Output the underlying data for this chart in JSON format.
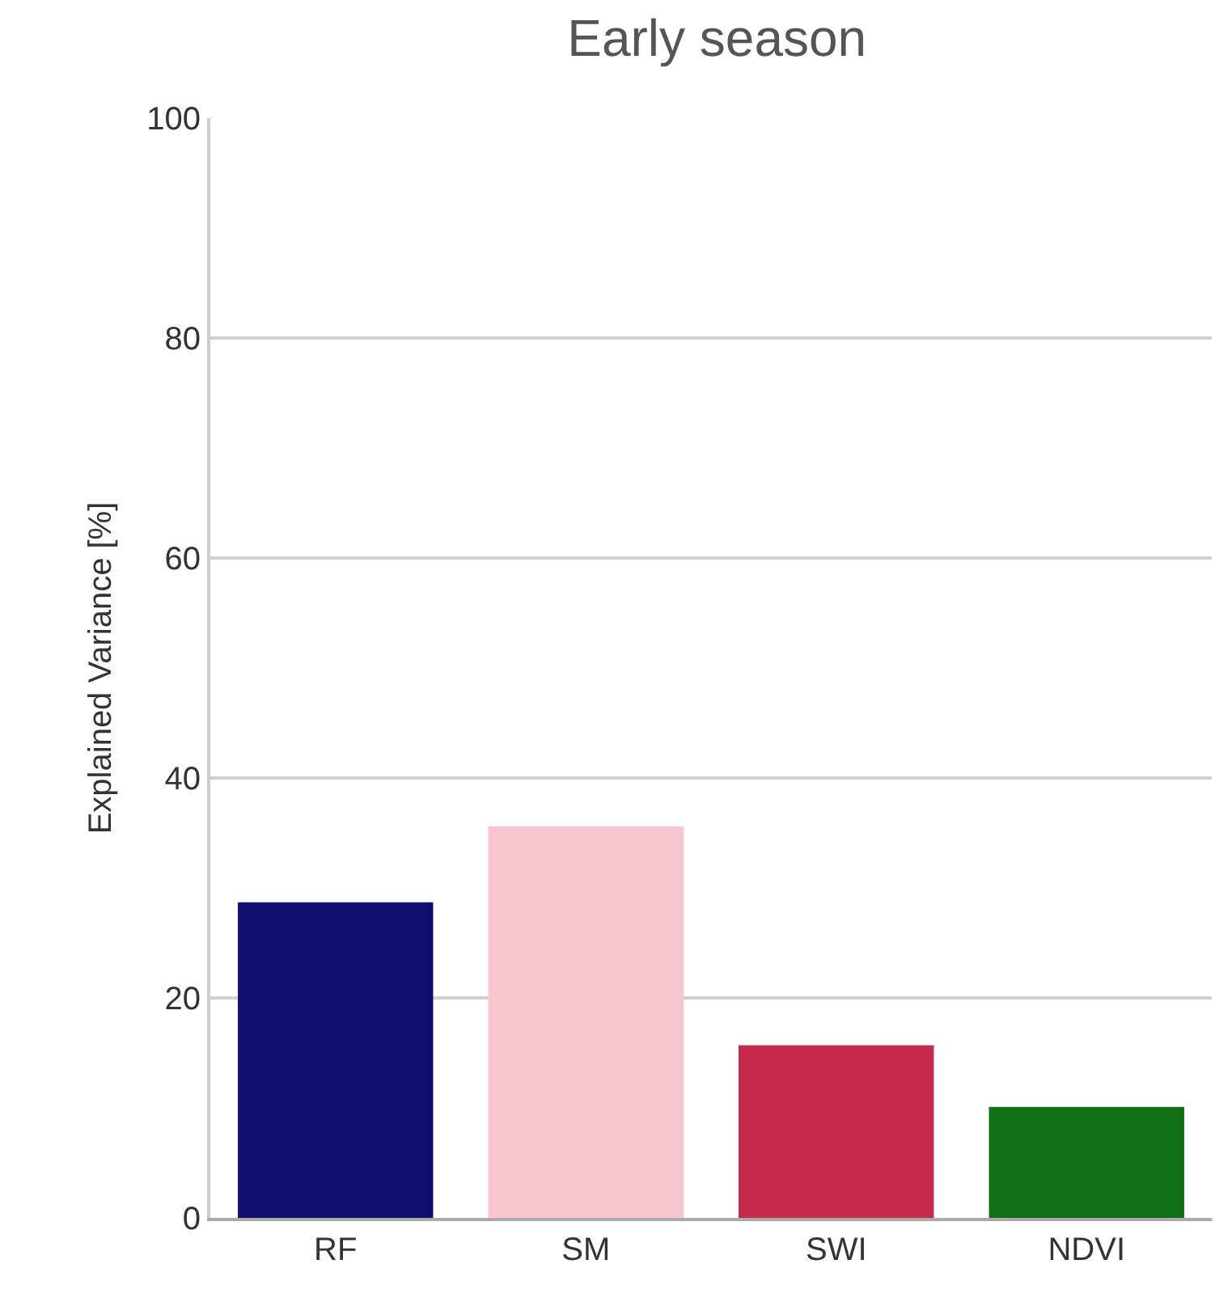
{
  "chart_data": {
    "type": "bar",
    "title": "Early season",
    "ylabel": "Explained Variance [%]",
    "categories": [
      "RF",
      "SM",
      "SWI",
      "NDVI"
    ],
    "values": [
      28.7,
      35.6,
      15.7,
      10.1
    ],
    "colors": [
      "#0f0f6e",
      "#f7c5cf",
      "#c42a4a",
      "#117014"
    ],
    "ylim": [
      0,
      100
    ],
    "yticks": [
      0,
      20,
      40,
      60,
      80,
      100
    ],
    "grid": "y"
  }
}
